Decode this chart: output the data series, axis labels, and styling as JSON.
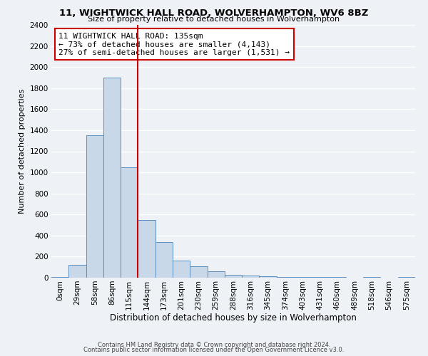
{
  "title": "11, WIGHTWICK HALL ROAD, WOLVERHAMPTON, WV6 8BZ",
  "subtitle": "Size of property relative to detached houses in Wolverhampton",
  "xlabel": "Distribution of detached houses by size in Wolverhampton",
  "ylabel": "Number of detached properties",
  "bin_labels": [
    "0sqm",
    "29sqm",
    "58sqm",
    "86sqm",
    "115sqm",
    "144sqm",
    "173sqm",
    "201sqm",
    "230sqm",
    "259sqm",
    "288sqm",
    "316sqm",
    "345sqm",
    "374sqm",
    "403sqm",
    "431sqm",
    "460sqm",
    "489sqm",
    "518sqm",
    "546sqm",
    "575sqm"
  ],
  "bar_heights": [
    10,
    125,
    1350,
    1900,
    1050,
    550,
    340,
    160,
    105,
    60,
    30,
    20,
    15,
    10,
    5,
    5,
    5,
    3,
    5,
    3,
    5
  ],
  "bar_color": "#c8d8e8",
  "bar_edge_color": "#5a8fc0",
  "vline_x": 5,
  "vline_color": "#cc0000",
  "annotation_line1": "11 WIGHTWICK HALL ROAD: 135sqm",
  "annotation_line2": "← 73% of detached houses are smaller (4,143)",
  "annotation_line3": "27% of semi-detached houses are larger (1,531) →",
  "annotation_box_color": "#ffffff",
  "annotation_box_edge": "#cc0000",
  "ylim": [
    0,
    2400
  ],
  "yticks": [
    0,
    200,
    400,
    600,
    800,
    1000,
    1200,
    1400,
    1600,
    1800,
    2000,
    2200,
    2400
  ],
  "footer1": "Contains HM Land Registry data © Crown copyright and database right 2024.",
  "footer2": "Contains public sector information licensed under the Open Government Licence v3.0.",
  "bg_color": "#eef2f6",
  "plot_bg_color": "#eef2f6",
  "grid_color": "#ffffff",
  "title_fontsize": 9.5,
  "subtitle_fontsize": 8.0,
  "xlabel_fontsize": 8.5,
  "ylabel_fontsize": 8.0,
  "tick_fontsize": 7.5,
  "annot_fontsize": 8.0
}
